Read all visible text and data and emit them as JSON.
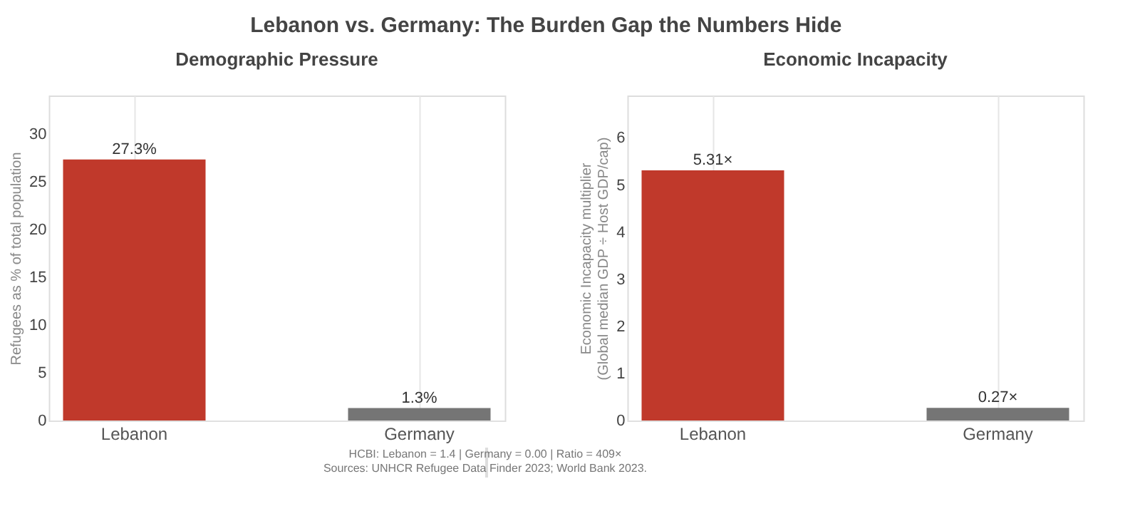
{
  "chart_data": [
    {
      "type": "bar",
      "title": "Demographic Pressure",
      "ylabel": "Refugees as % of total population",
      "categories": [
        "Lebanon",
        "Germany"
      ],
      "values": [
        27.3,
        1.3
      ],
      "colors": [
        "#c0392b",
        "#757575"
      ],
      "value_labels": [
        "27.3%",
        "1.3%"
      ],
      "ylim": [
        0,
        34
      ],
      "yticks": [
        0,
        5,
        10,
        15,
        20,
        25,
        30
      ],
      "grid": "x",
      "annotations": [
        "Lebanon vs. Germany: The Burden Gap the Numbers Hide"
      ]
    },
    {
      "type": "bar",
      "title": "Economic Incapacity",
      "ylabel": "Economic Incapacity multiplier\n(Global median GDP ÷ Host GDP/cap)",
      "categories": [
        "Lebanon",
        "Germany"
      ],
      "values": [
        5.31,
        0.27
      ],
      "colors": [
        "#c0392b",
        "#757575"
      ],
      "value_labels": [
        "5.31×",
        "0.27×"
      ],
      "ylim": [
        0,
        6.9
      ],
      "yticks": [
        0,
        1,
        2,
        3,
        4,
        5,
        6
      ],
      "grid": "x",
      "annotations": [
        "HCBI: Lebanon = 1.4  |  Germany = 0.00  |  Ratio = 409×",
        "Sources: UNHCR Refugee Data Finder 2023; World Bank 2023."
      ]
    }
  ]
}
